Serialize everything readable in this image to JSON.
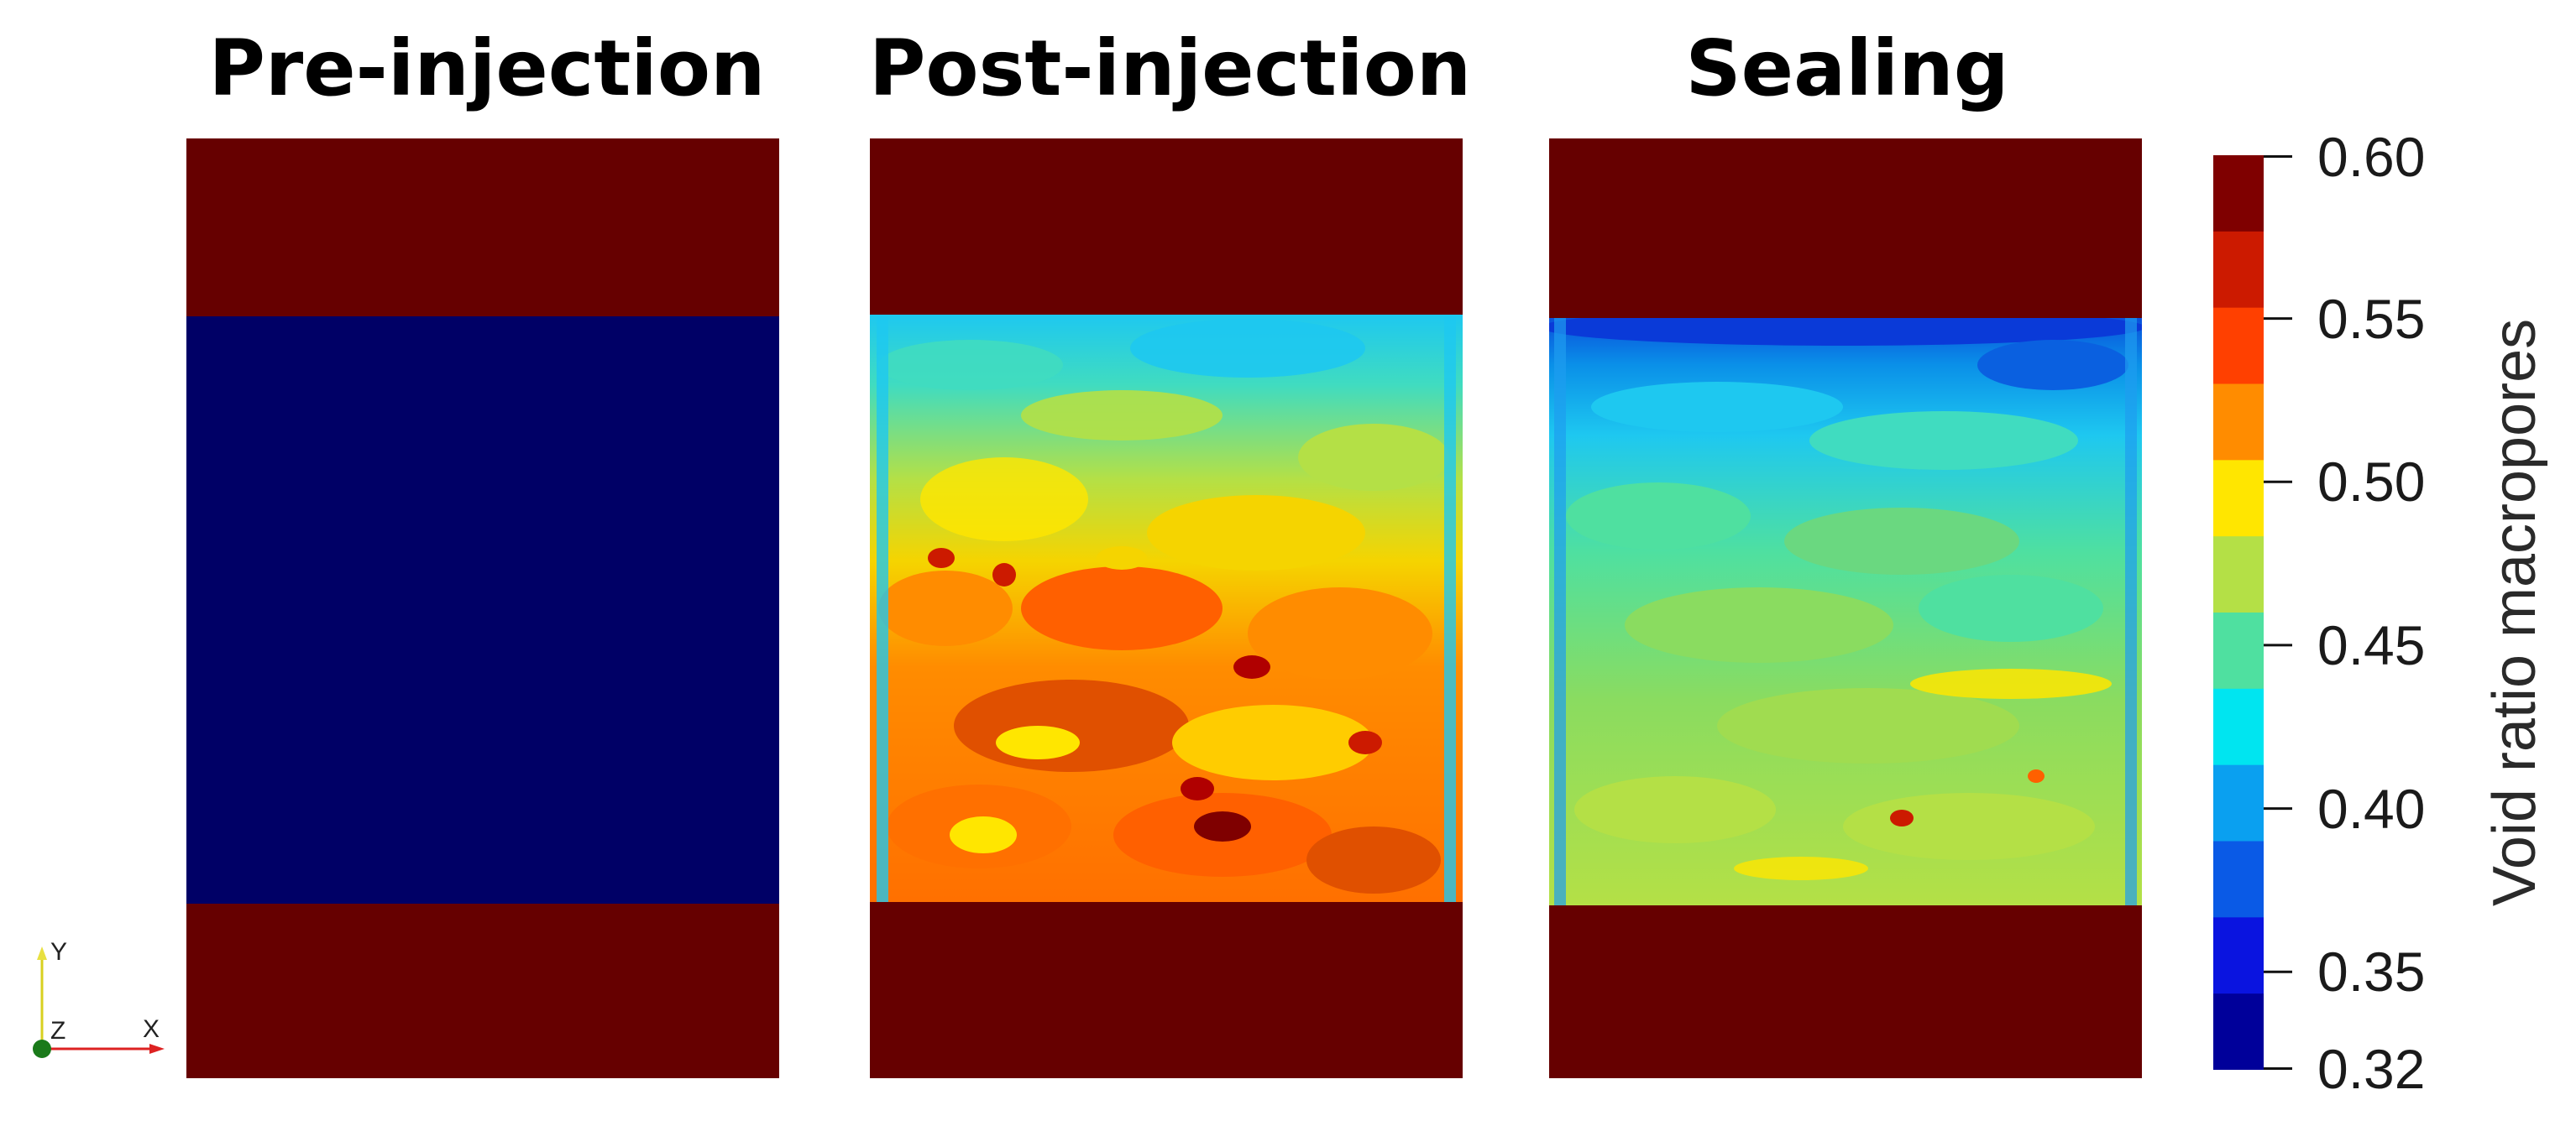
{
  "panels": [
    {
      "id": "pre",
      "title": "Pre-injection"
    },
    {
      "id": "post",
      "title": "Post-injection"
    },
    {
      "id": "seal",
      "title": "Sealing"
    }
  ],
  "colorbar": {
    "title": "Void ratio macropores",
    "min": 0.32,
    "max": 0.6,
    "ticks": [
      "0.60",
      "0.55",
      "0.50",
      "0.45",
      "0.40",
      "0.35",
      "0.32"
    ],
    "tick_values": [
      0.6,
      0.55,
      0.5,
      0.45,
      0.4,
      0.35,
      0.32
    ],
    "bands_top_to_bottom": [
      "#7f0000",
      "#cc1a00",
      "#ff4000",
      "#ff8c00",
      "#ffe600",
      "#b4e046",
      "#4fe0a0",
      "#00e5f0",
      "#0aa0f0",
      "#0a5ae6",
      "#0a14e0",
      "#00009a"
    ]
  },
  "colors": {
    "cap": "#660000",
    "pre_fill": "#000066",
    "plot_background": "#ffffff"
  },
  "axes_triad": {
    "x": "X",
    "y": "Y",
    "z": "Z"
  }
}
